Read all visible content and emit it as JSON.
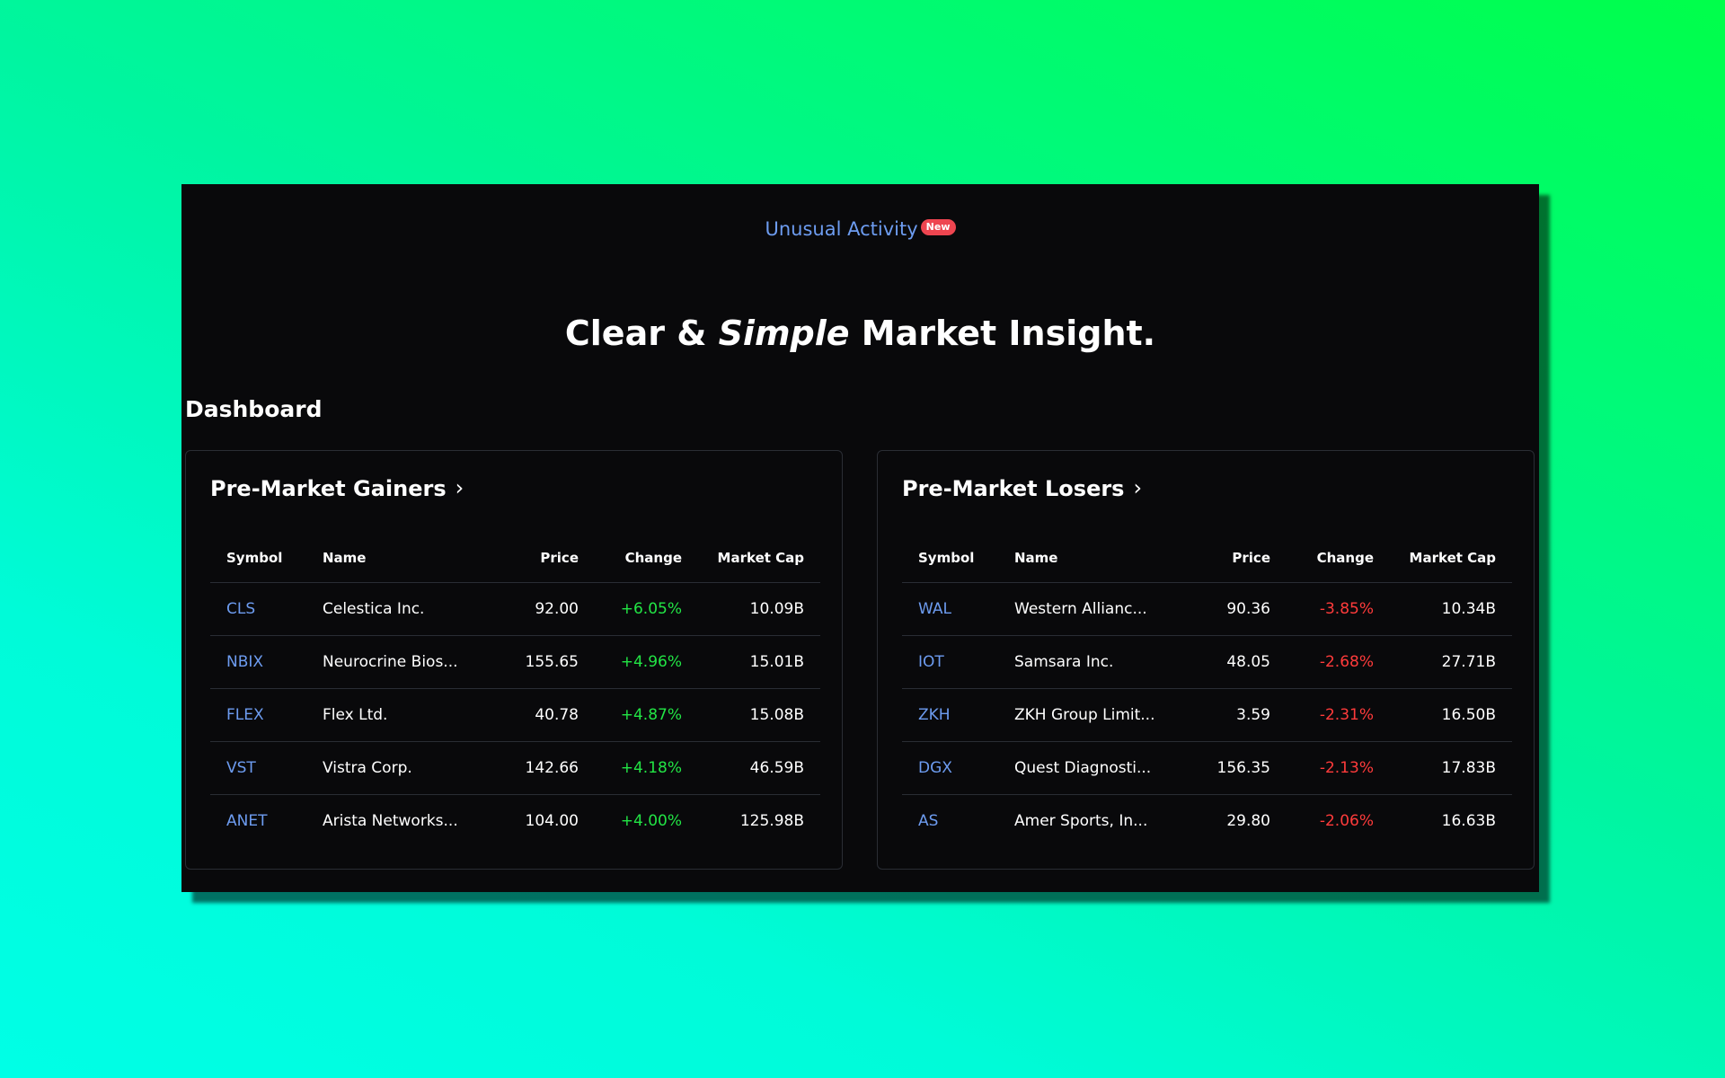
{
  "colors": {
    "window_bg": "#09090b",
    "link": "#6d9cf0",
    "badge": "#ee4550",
    "positive": "#22e545",
    "negative": "#ff3b3b"
  },
  "nav": {
    "unusual_activity_label": "Unusual Activity",
    "badge_label": "New"
  },
  "hero": {
    "part1": "Clear & ",
    "part2_italic": "Simple",
    "part3": " Market Insight."
  },
  "dashboard_title": "Dashboard",
  "columns": {
    "symbol": "Symbol",
    "name": "Name",
    "price": "Price",
    "change": "Change",
    "market_cap": "Market Cap"
  },
  "gainers": {
    "title": "Pre-Market Gainers",
    "chevron": "›",
    "rows": [
      {
        "symbol": "CLS",
        "name": "Celestica Inc.",
        "price": "92.00",
        "change": "+6.05%",
        "market_cap": "10.09B"
      },
      {
        "symbol": "NBIX",
        "name": "Neurocrine Bios...",
        "price": "155.65",
        "change": "+4.96%",
        "market_cap": "15.01B"
      },
      {
        "symbol": "FLEX",
        "name": "Flex Ltd.",
        "price": "40.78",
        "change": "+4.87%",
        "market_cap": "15.08B"
      },
      {
        "symbol": "VST",
        "name": "Vistra Corp.",
        "price": "142.66",
        "change": "+4.18%",
        "market_cap": "46.59B"
      },
      {
        "symbol": "ANET",
        "name": "Arista Networks...",
        "price": "104.00",
        "change": "+4.00%",
        "market_cap": "125.98B"
      }
    ]
  },
  "losers": {
    "title": "Pre-Market Losers",
    "chevron": "›",
    "rows": [
      {
        "symbol": "WAL",
        "name": "Western Allianc...",
        "price": "90.36",
        "change": "-3.85%",
        "market_cap": "10.34B"
      },
      {
        "symbol": "IOT",
        "name": "Samsara Inc.",
        "price": "48.05",
        "change": "-2.68%",
        "market_cap": "27.71B"
      },
      {
        "symbol": "ZKH",
        "name": "ZKH Group Limit...",
        "price": "3.59",
        "change": "-2.31%",
        "market_cap": "16.50B"
      },
      {
        "symbol": "DGX",
        "name": "Quest Diagnosti...",
        "price": "156.35",
        "change": "-2.13%",
        "market_cap": "17.83B"
      },
      {
        "symbol": "AS",
        "name": "Amer Sports, In...",
        "price": "29.80",
        "change": "-2.06%",
        "market_cap": "16.63B"
      }
    ]
  }
}
